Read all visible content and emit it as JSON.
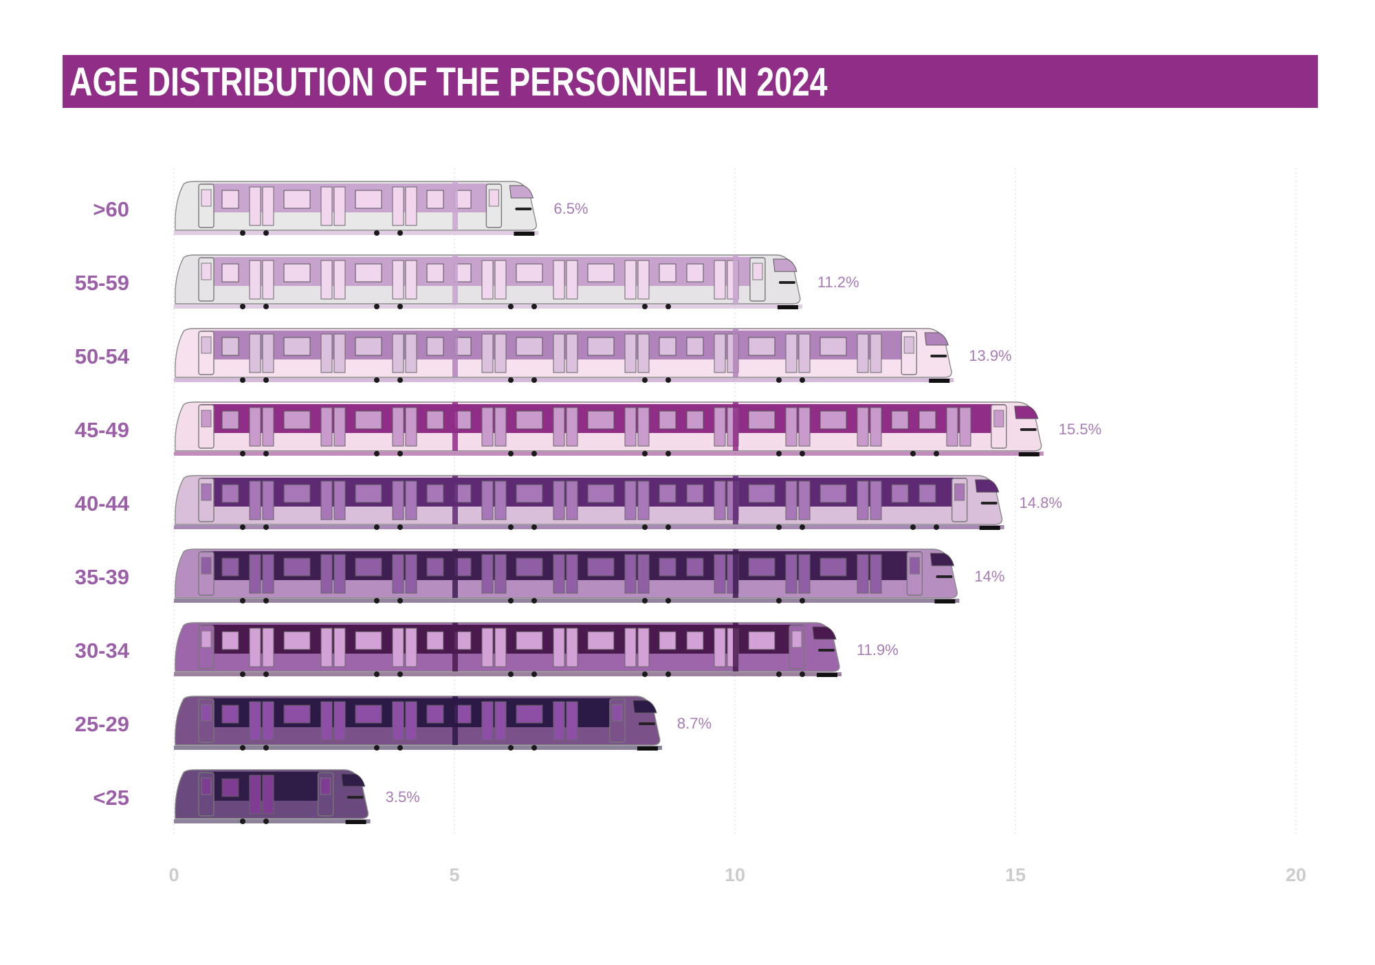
{
  "chart_data": {
    "type": "bar",
    "orientation": "horizontal",
    "title": "AGE DISTRIBUTION OF THE PERSONNEL IN 2024",
    "categories": [
      ">60",
      "55-59",
      "50-54",
      "45-49",
      "40-44",
      "35-39",
      "30-34",
      "25-29",
      "<25"
    ],
    "values": [
      6.5,
      11.2,
      13.9,
      15.5,
      14.8,
      14,
      11.9,
      8.7,
      3.5
    ],
    "value_labels": [
      "6.5%",
      "11.2%",
      "13.9%",
      "15.5%",
      "14.8%",
      "14%",
      "11.9%",
      "8.7%",
      "3.5%"
    ],
    "xlim": [
      0,
      20
    ],
    "xticks": [
      "0",
      "5",
      "10",
      "15",
      "20"
    ],
    "grid": "vertical dotted",
    "bar_style": "train",
    "colors": {
      "title_bg": "#8f2d87",
      "title_text": "#ffffff",
      "category_label": "#9b5fa8",
      "value_label": "#a77bb4",
      "tick_label": "#cccccc",
      "trains": [
        {
          "body": "#e8e8e8",
          "band": "#c9a6cf",
          "window": "#f2d6ee"
        },
        {
          "body": "#e6e3e6",
          "band": "#c6a2cc",
          "window": "#f1d7ee"
        },
        {
          "body": "#f7e1ee",
          "band": "#b084ba",
          "window": "#dcc1de"
        },
        {
          "body": "#f4dcea",
          "band": "#8f2d87",
          "window": "#c89bcc"
        },
        {
          "body": "#d9bfd9",
          "band": "#5e2a74",
          "window": "#a777b7"
        },
        {
          "body": "#b68ec0",
          "band": "#3f1e52",
          "window": "#8f5ea5"
        },
        {
          "body": "#9d66ab",
          "band": "#4a1a4e",
          "window": "#d2a2d6"
        },
        {
          "body": "#7a5289",
          "band": "#2b1946",
          "window": "#8d4fa5"
        },
        {
          "body": "#6a4a7e",
          "band": "#2f1c47",
          "window": "#7e3c93"
        }
      ]
    }
  }
}
